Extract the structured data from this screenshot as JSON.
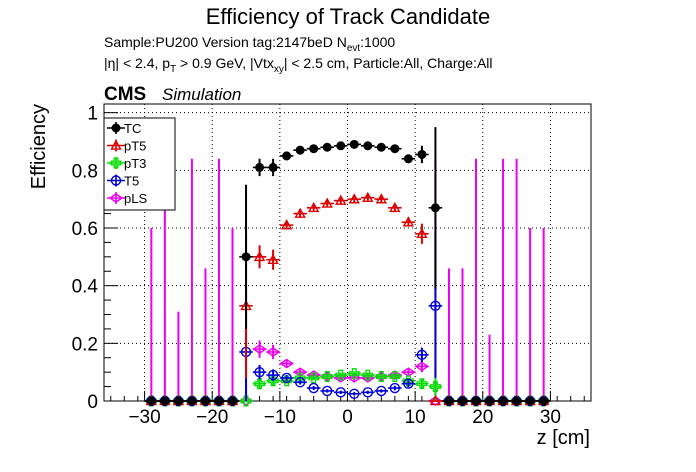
{
  "chart_data": {
    "type": "scatter",
    "title": "Efficiency of Track Candidate",
    "subtitle_line1": {
      "sample": "Sample:PU200   Version tag:2147beD  N",
      "sub": "evt",
      "tail": ":1000"
    },
    "subtitle_line2": {
      "p1": "|η| < 2.4, p",
      "s1": "T",
      "p2": " > 0.9 GeV, |Vtx",
      "s2": "xy",
      "p3": "| < 2.5 cm, Particle:All, Charge:All"
    },
    "cms_label": "CMS",
    "simulation_label": "Simulation",
    "xlabel": "z [cm]",
    "ylabel": "Efficiency",
    "xlim": [
      -36,
      36
    ],
    "ylim": [
      0,
      1.03
    ],
    "grid": true,
    "legend_position": "top-left",
    "xticks": [
      -30,
      -20,
      -10,
      0,
      10,
      20,
      30
    ],
    "yticks": [
      0,
      0.2,
      0.4,
      0.6,
      0.8,
      1
    ],
    "ytick_labels": [
      "0",
      "0.2",
      "0.4",
      "0.6",
      "0.8",
      "1"
    ],
    "series": [
      {
        "name": "TC",
        "color": "#000000",
        "marker": "filled-circle",
        "x": [
          -29,
          -27,
          -25,
          -23,
          -21,
          -19,
          -17,
          -15,
          -13,
          -11,
          -9,
          -7,
          -5,
          -3,
          -1,
          1,
          3,
          5,
          7,
          9,
          11,
          13,
          15,
          17,
          19,
          21,
          23,
          25,
          27,
          29
        ],
        "y": [
          0,
          0,
          0,
          0,
          0,
          0,
          0,
          0.5,
          0.81,
          0.81,
          0.85,
          0.87,
          0.875,
          0.88,
          0.885,
          0.89,
          0.885,
          0.88,
          0.875,
          0.84,
          0.855,
          0.67,
          0,
          0,
          0,
          0,
          0,
          0,
          0,
          0
        ],
        "yerr": [
          0,
          0,
          0,
          0,
          0,
          0,
          0,
          0.25,
          0.03,
          0.03,
          0.015,
          0.01,
          0.01,
          0.01,
          0.01,
          0.01,
          0.01,
          0.01,
          0.01,
          0.015,
          0.03,
          0.28,
          0,
          0,
          0,
          0,
          0,
          0,
          0,
          0
        ]
      },
      {
        "name": "pT5",
        "color": "#dd0000",
        "marker": "open-triangle",
        "x": [
          -29,
          -27,
          -25,
          -23,
          -21,
          -19,
          -17,
          -15,
          -13,
          -11,
          -9,
          -7,
          -5,
          -3,
          -1,
          1,
          3,
          5,
          7,
          9,
          11,
          13,
          15,
          17,
          19,
          21,
          23,
          25,
          27,
          29
        ],
        "y": [
          0,
          0,
          0,
          0,
          0,
          0,
          0,
          0.33,
          0.5,
          0.49,
          0.61,
          0.65,
          0.67,
          0.685,
          0.695,
          0.7,
          0.705,
          0.7,
          0.67,
          0.62,
          0.58,
          0,
          0,
          0,
          0,
          0,
          0,
          0,
          0,
          0
        ],
        "yerr": [
          0,
          0,
          0,
          0,
          0,
          0,
          0,
          0.25,
          0.04,
          0.035,
          0.015,
          0.012,
          0.01,
          0.01,
          0.01,
          0.01,
          0.01,
          0.01,
          0.012,
          0.015,
          0.035,
          0,
          0,
          0,
          0,
          0,
          0,
          0,
          0,
          0
        ]
      },
      {
        "name": "pT3",
        "color": "#00dd00",
        "marker": "open-cross",
        "x": [
          -29,
          -27,
          -25,
          -23,
          -21,
          -19,
          -17,
          -15,
          -13,
          -11,
          -9,
          -7,
          -5,
          -3,
          -1,
          1,
          3,
          5,
          7,
          9,
          11,
          13,
          15,
          17,
          19,
          21,
          23,
          25,
          27,
          29
        ],
        "y": [
          0,
          0,
          0,
          0,
          0,
          0,
          0,
          0,
          0.06,
          0.07,
          0.07,
          0.08,
          0.08,
          0.085,
          0.09,
          0.095,
          0.09,
          0.085,
          0.085,
          0.07,
          0.06,
          0.05,
          0,
          0,
          0,
          0,
          0,
          0,
          0,
          0
        ],
        "yerr": [
          0,
          0,
          0,
          0,
          0,
          0,
          0,
          0,
          0.02,
          0.015,
          0.01,
          0.008,
          0.008,
          0.008,
          0.008,
          0.008,
          0.008,
          0.008,
          0.008,
          0.01,
          0.015,
          0.05,
          0,
          0,
          0,
          0,
          0,
          0,
          0,
          0
        ]
      },
      {
        "name": "T5",
        "color": "#0000dd",
        "marker": "open-circle",
        "x": [
          -29,
          -27,
          -25,
          -23,
          -21,
          -19,
          -17,
          -15,
          -13,
          -11,
          -9,
          -7,
          -5,
          -3,
          -1,
          1,
          3,
          5,
          7,
          9,
          11,
          13,
          15,
          17,
          19,
          21,
          23,
          25,
          27,
          29
        ],
        "y": [
          0,
          0,
          0,
          0,
          0,
          0,
          0,
          0.17,
          0.1,
          0.09,
          0.08,
          0.065,
          0.045,
          0.035,
          0.03,
          0.025,
          0.03,
          0.035,
          0.045,
          0.06,
          0.16,
          0.33,
          0,
          0,
          0,
          0,
          0,
          0,
          0,
          0
        ],
        "yerr": [
          0,
          0,
          0,
          0,
          0,
          0,
          0,
          0.2,
          0.025,
          0.02,
          0.01,
          0.008,
          0.007,
          0.006,
          0.006,
          0.006,
          0.006,
          0.006,
          0.008,
          0.012,
          0.025,
          0.25,
          0,
          0,
          0,
          0,
          0,
          0,
          0,
          0
        ]
      },
      {
        "name": "pLS",
        "color": "#ee00ee",
        "marker": "open-diamond",
        "x": [
          -29,
          -27,
          -25,
          -23,
          -21,
          -19,
          -17,
          -15,
          -13,
          -11,
          -9,
          -7,
          -5,
          -3,
          -1,
          1,
          3,
          5,
          7,
          9,
          11,
          13,
          15,
          17,
          19,
          21,
          23,
          25,
          27,
          29
        ],
        "y": [
          0,
          0,
          0,
          0,
          0,
          0,
          0,
          0,
          0.18,
          0.17,
          0.13,
          0.1,
          0.09,
          0.085,
          0.08,
          0.08,
          0.08,
          0.085,
          0.09,
          0.1,
          0.12,
          0,
          0,
          0,
          0,
          0,
          0,
          0,
          0,
          0
        ],
        "yerr": [
          0,
          0,
          0,
          0,
          0,
          0,
          0,
          0,
          0.03,
          0.025,
          0.015,
          0.01,
          0.01,
          0.01,
          0.01,
          0.01,
          0.01,
          0.01,
          0.01,
          0.012,
          0.02,
          0,
          0,
          0,
          0,
          0,
          0,
          0,
          0,
          0
        ],
        "yerr_up": [
          0.6,
          0.68,
          0.31,
          0.84,
          0.46,
          0.84,
          0.6,
          0.06,
          0,
          0,
          0,
          0,
          0,
          0,
          0,
          0,
          0,
          0,
          0,
          0,
          0,
          0.84,
          0.46,
          0.46,
          0.84,
          0.23,
          0.84,
          0.84,
          0.6,
          0.6
        ]
      }
    ]
  }
}
